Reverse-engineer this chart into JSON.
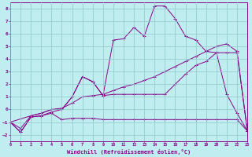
{
  "bg_color": "#c0eef0",
  "line_color": "#880088",
  "grid_color": "#90c8cc",
  "xlabel": "Windchill (Refroidissement éolien,°C)",
  "xlim": [
    0,
    23
  ],
  "ylim": [
    -2.5,
    8.5
  ],
  "yticks": [
    -2,
    -1,
    0,
    1,
    2,
    3,
    4,
    5,
    6,
    7,
    8
  ],
  "xticks": [
    0,
    1,
    2,
    3,
    4,
    5,
    6,
    7,
    8,
    9,
    10,
    11,
    12,
    13,
    14,
    15,
    16,
    17,
    18,
    19,
    20,
    21,
    22,
    23
  ],
  "s1_x": [
    0,
    1,
    2,
    3,
    4,
    5,
    6,
    7,
    8,
    9,
    10,
    11,
    12,
    13,
    14,
    15,
    16,
    17,
    18,
    19,
    20,
    21,
    22,
    23
  ],
  "s1_y": [
    -1.0,
    -1.8,
    -0.6,
    -0.5,
    -0.3,
    -0.8,
    -0.7,
    -0.7,
    -0.7,
    -0.8,
    -0.8,
    -0.8,
    -0.8,
    -0.8,
    -0.8,
    -0.8,
    -0.8,
    -0.8,
    -0.8,
    -0.8,
    -0.8,
    -0.8,
    -0.8,
    -1.7
  ],
  "s2_x": [
    0,
    1,
    2,
    3,
    4,
    5,
    6,
    7,
    8,
    9,
    10,
    11,
    12,
    13,
    14,
    15,
    16,
    17,
    18,
    19,
    20,
    21,
    22,
    23
  ],
  "s2_y": [
    -1.0,
    -1.8,
    -0.6,
    -0.5,
    -0.2,
    0.0,
    1.0,
    2.6,
    2.2,
    1.1,
    5.5,
    5.6,
    6.5,
    5.8,
    8.2,
    8.2,
    7.2,
    5.8,
    5.5,
    4.6,
    4.5,
    1.2,
    -0.3,
    -1.7
  ],
  "s3_x": [
    0,
    2,
    3,
    4,
    5,
    6,
    7,
    8,
    9,
    10,
    11,
    12,
    13,
    14,
    15,
    16,
    17,
    18,
    19,
    20,
    21,
    22,
    23
  ],
  "s3_y": [
    -1.0,
    -0.5,
    -0.3,
    0.0,
    0.0,
    1.0,
    2.6,
    2.2,
    1.1,
    1.2,
    1.2,
    1.2,
    1.2,
    1.2,
    1.2,
    2.0,
    2.8,
    3.5,
    3.8,
    4.5,
    4.5,
    4.5,
    -1.7
  ],
  "s4_x": [
    0,
    1,
    2,
    3,
    4,
    5,
    6,
    7,
    8,
    9,
    10,
    11,
    12,
    13,
    14,
    15,
    16,
    17,
    18,
    19,
    20,
    21,
    22,
    23
  ],
  "s4_y": [
    -1.0,
    -1.5,
    -0.5,
    -0.3,
    0.0,
    0.1,
    0.5,
    1.0,
    1.1,
    1.2,
    1.5,
    1.8,
    2.0,
    2.3,
    2.6,
    3.0,
    3.4,
    3.8,
    4.2,
    4.6,
    5.0,
    5.2,
    4.6,
    -1.7
  ]
}
